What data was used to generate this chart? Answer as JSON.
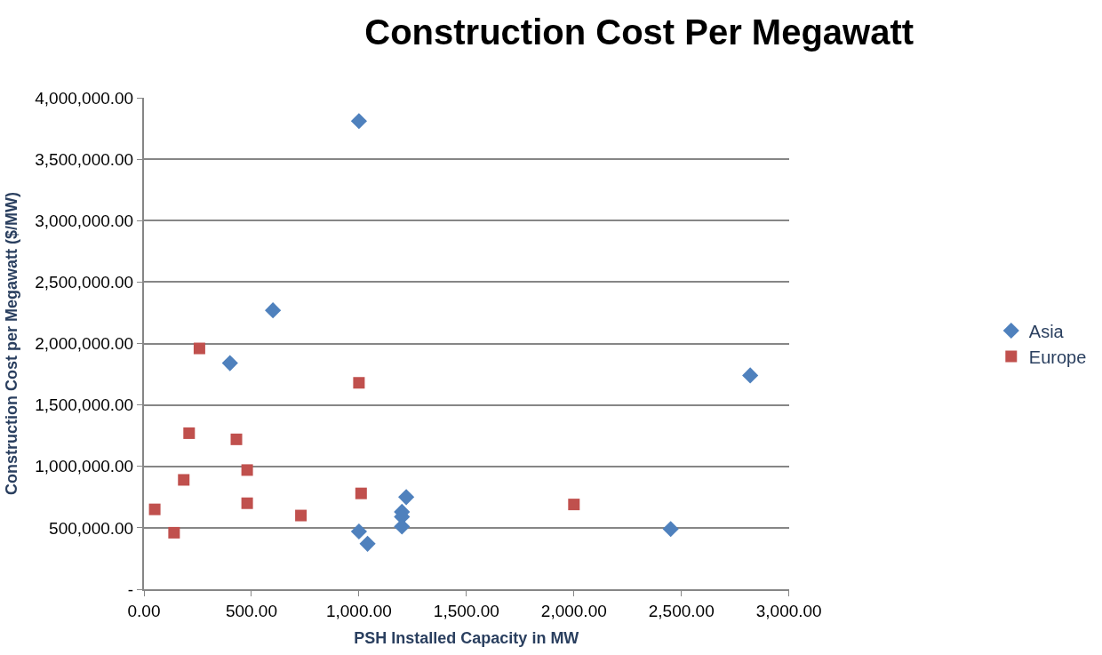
{
  "chart_data": {
    "type": "scatter",
    "title": "Construction Cost Per Megawatt",
    "xlabel": "PSH Installed Capacity in MW",
    "ylabel": "Construction Cost per Megawatt ($/MW)",
    "series": [
      {
        "name": "Asia",
        "color": "#4f81bd",
        "marker": "diamond",
        "x": [
          1000,
          600,
          400,
          2820,
          1220,
          1200,
          1200,
          1200,
          1000,
          1040,
          2450
        ],
        "values": [
          3810000,
          2270000,
          1840000,
          1740000,
          750000,
          630000,
          590000,
          510000,
          470000,
          370000,
          490000
        ]
      },
      {
        "name": "Europe",
        "color": "#c0504d",
        "marker": "square",
        "x": [
          258,
          1000,
          210,
          430,
          480,
          185,
          1010,
          480,
          50,
          730,
          140,
          2000
        ],
        "values": [
          1960000,
          1680000,
          1270000,
          1220000,
          970000,
          890000,
          780000,
          700000,
          650000,
          600000,
          460000,
          690000
        ]
      }
    ],
    "xlim": [
      0,
      3000
    ],
    "xticks": [
      {
        "value": 0,
        "label": "0.00"
      },
      {
        "value": 500,
        "label": "500.00"
      },
      {
        "value": 1000,
        "label": "1,000.00"
      },
      {
        "value": 1500,
        "label": "1,500.00"
      },
      {
        "value": 2000,
        "label": "2,000.00"
      },
      {
        "value": 2500,
        "label": "2,500.00"
      },
      {
        "value": 3000,
        "label": "3,000.00"
      }
    ],
    "ylim": [
      0,
      4000000
    ],
    "yticks": [
      {
        "value": 0,
        "label": "-"
      },
      {
        "value": 500000,
        "label": "500,000.00"
      },
      {
        "value": 1000000,
        "label": "1,000,000.00"
      },
      {
        "value": 1500000,
        "label": "1,500,000.00"
      },
      {
        "value": 2000000,
        "label": "2,000,000.00"
      },
      {
        "value": 2500000,
        "label": "2,500,000.00"
      },
      {
        "value": 3000000,
        "label": "3,000,000.00"
      },
      {
        "value": 3500000,
        "label": "3,500,000.00"
      },
      {
        "value": 4000000,
        "label": "4,000,000.00"
      }
    ],
    "grid": "y",
    "legend": "right"
  }
}
